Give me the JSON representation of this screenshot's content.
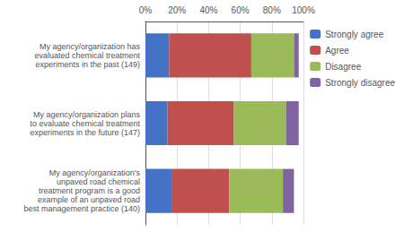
{
  "chart_data": {
    "type": "bar",
    "orientation": "horizontal",
    "stacked": true,
    "categories": [
      "My agency/organization has\nevaluated chemical treatment\nexperiments in the past (149)",
      "My agency/organization plans\nto evaluate chemical treatment\nexperiments in the future (147)",
      "My agency/organization's\nunpaved road chemical\ntreatment program is a good\nexample of an unpaved road\nbest management practice (140)"
    ],
    "series": [
      {
        "name": "Strongly agree",
        "color": "#4472C4",
        "values": [
          15,
          14,
          17
        ]
      },
      {
        "name": "Agree",
        "color": "#C0504D",
        "values": [
          52,
          42,
          36
        ]
      },
      {
        "name": "Disagree",
        "color": "#9BBB59",
        "values": [
          27,
          33,
          34
        ]
      },
      {
        "name": "Strongly disagree",
        "color": "#8064A2",
        "values": [
          3,
          8,
          7
        ]
      }
    ],
    "xlim": [
      0,
      100
    ],
    "xticks": [
      {
        "value": 0,
        "label": "0%"
      },
      {
        "value": 20,
        "label": "20%"
      },
      {
        "value": 40,
        "label": "40%"
      },
      {
        "value": 60,
        "label": "60%"
      },
      {
        "value": 80,
        "label": "80%"
      },
      {
        "value": 100,
        "label": "100%"
      }
    ],
    "grid": true,
    "legend": "right"
  }
}
